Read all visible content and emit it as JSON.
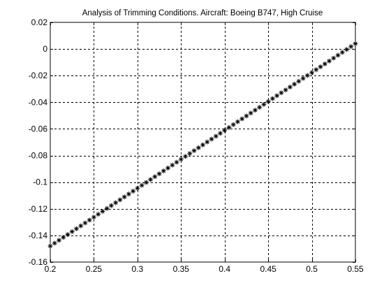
{
  "chart_data": {
    "type": "scatter",
    "title": "Analysis of Trimming Conditions. Aircraft: Boeing B747, High Cruise",
    "xlabel": "",
    "ylabel": "",
    "xlim": [
      0.2,
      0.55
    ],
    "ylim": [
      -0.16,
      0.02
    ],
    "xticks": [
      0.2,
      0.25,
      0.3,
      0.35,
      0.4,
      0.45,
      0.5,
      0.55
    ],
    "xtick_labels": [
      "0.2",
      "0.25",
      "0.3",
      "0.35",
      "0.4",
      "0.45",
      "0.5",
      "0.55"
    ],
    "yticks": [
      0.02,
      0,
      -0.02,
      -0.04,
      -0.06,
      -0.08,
      -0.1,
      -0.12,
      -0.14,
      -0.16
    ],
    "ytick_labels": [
      "0.02",
      "0",
      "-0.02",
      "-0.04",
      "-0.06",
      "-0.08",
      "-0.1",
      "-0.12",
      "-0.14",
      "-0.16"
    ],
    "grid": true,
    "grid_style": "dashed",
    "marker": "*",
    "marker_color": "#000000",
    "series": [
      {
        "x_start": 0.2,
        "x_end": 0.55,
        "x_step": 0.005,
        "y_at_x_start": -0.148,
        "y_at_x_end": 0.004
      }
    ]
  }
}
